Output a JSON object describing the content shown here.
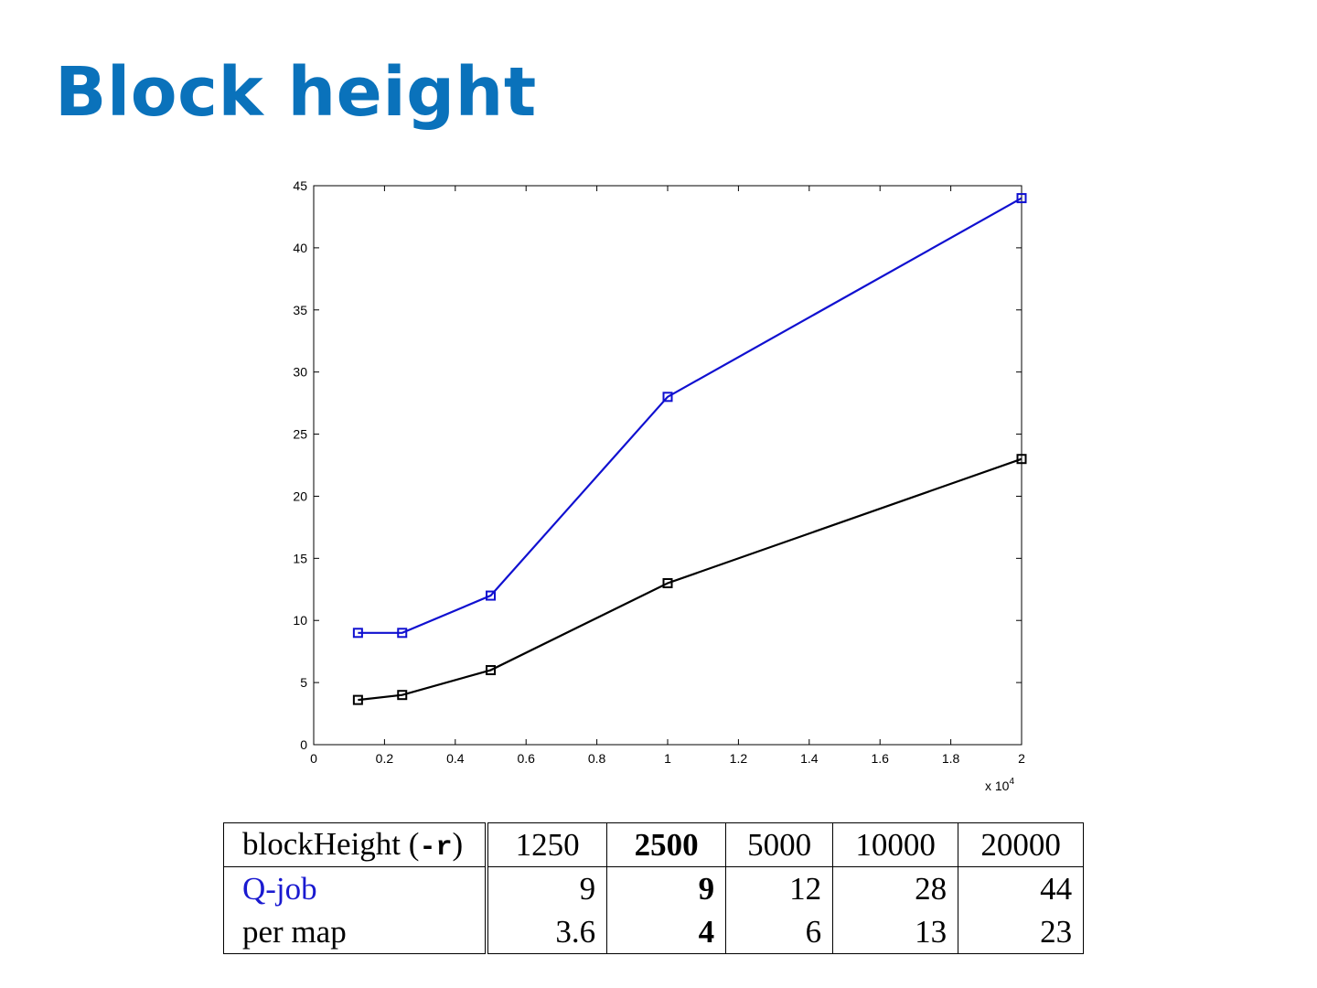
{
  "title": "Block height",
  "chart_data": {
    "type": "line",
    "x_scale_label": "x 10",
    "x_scale_exponent": "4",
    "xlim": [
      0,
      20000
    ],
    "ylim": [
      0,
      45
    ],
    "x_ticks": [
      {
        "value": 0,
        "label": "0"
      },
      {
        "value": 2000,
        "label": "0.2"
      },
      {
        "value": 4000,
        "label": "0.4"
      },
      {
        "value": 6000,
        "label": "0.6"
      },
      {
        "value": 8000,
        "label": "0.8"
      },
      {
        "value": 10000,
        "label": "1"
      },
      {
        "value": 12000,
        "label": "1.2"
      },
      {
        "value": 14000,
        "label": "1.4"
      },
      {
        "value": 16000,
        "label": "1.6"
      },
      {
        "value": 18000,
        "label": "1.8"
      },
      {
        "value": 20000,
        "label": "2"
      }
    ],
    "y_ticks": [
      0,
      5,
      10,
      15,
      20,
      25,
      30,
      35,
      40,
      45
    ],
    "x": [
      1250,
      2500,
      5000,
      10000,
      20000
    ],
    "series": [
      {
        "values": [
          9,
          9,
          12,
          28,
          44
        ],
        "color": "#1010d0",
        "marker": "square"
      },
      {
        "values": [
          3.6,
          4,
          6,
          13,
          23
        ],
        "color": "#000000",
        "marker": "square"
      }
    ],
    "grid": false,
    "legend": "none"
  },
  "table": {
    "header": {
      "label_text": "blockHeight (",
      "label_flag": "-r",
      "label_close": ")",
      "cols": [
        "1250",
        "2500",
        "5000",
        "10000",
        "20000"
      ]
    },
    "rows": [
      {
        "label": "Q-job",
        "label_color": "#1a1ad0",
        "values": [
          "9",
          "9",
          "12",
          "28",
          "44"
        ]
      },
      {
        "label": "per map",
        "values": [
          "3.6",
          "4",
          "6",
          "13",
          "23"
        ]
      }
    ],
    "bold_column": "2500"
  }
}
